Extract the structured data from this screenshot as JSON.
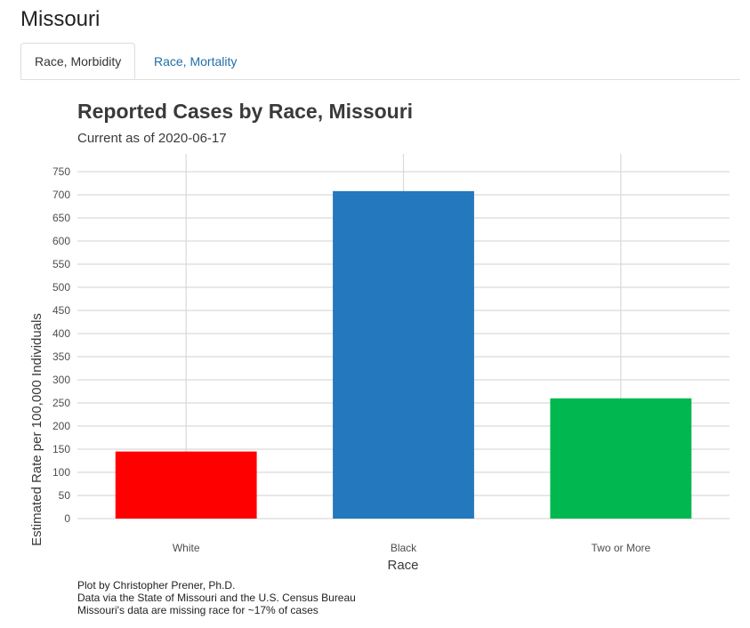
{
  "page": {
    "title": "Missouri"
  },
  "tabs": [
    {
      "label": "Race, Morbidity",
      "active": true
    },
    {
      "label": "Race, Mortality",
      "active": false
    }
  ],
  "colors": {
    "tab_link": "#1f6ea8"
  },
  "chart_data": {
    "type": "bar",
    "title": "Reported Cases by Race, Missouri",
    "subtitle": "Current as of 2020-06-17",
    "xlabel": "Race",
    "ylabel": "Estimated Rate per 100,000 Individuals",
    "categories": [
      "White",
      "Black",
      "Two or More"
    ],
    "values": [
      145,
      708,
      260
    ],
    "colors": [
      "#ff0000",
      "#2478bd",
      "#00b84f"
    ],
    "ylim": [
      0,
      760
    ],
    "yticks": [
      0,
      50,
      100,
      150,
      200,
      250,
      300,
      350,
      400,
      450,
      500,
      550,
      600,
      650,
      700,
      750
    ],
    "grid": true,
    "legend": "none",
    "caption": [
      "Plot by Christopher Prener, Ph.D.",
      "Data via the State of Missouri and the U.S. Census Bureau",
      "Missouri's data are missing race for ~17% of cases"
    ]
  }
}
